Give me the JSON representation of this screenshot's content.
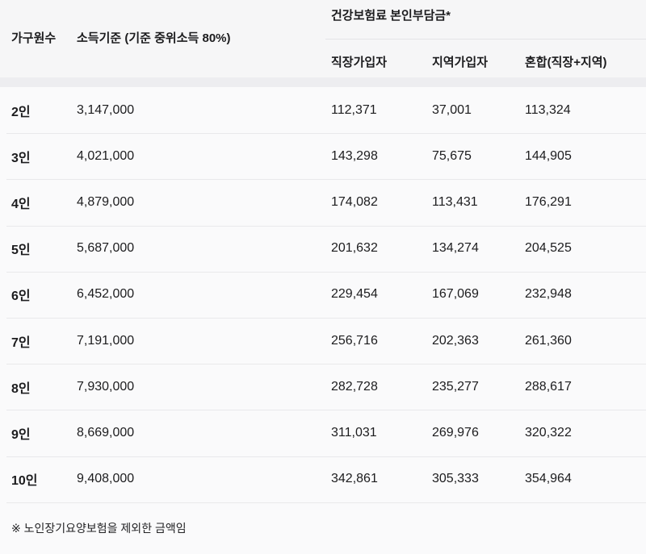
{
  "table": {
    "header": {
      "household_label": "가구원수",
      "income_label": "소득기준 (기준 중위소득 80%)",
      "group_title": "건강보험료 본인부담금*",
      "sub_columns": [
        "직장가입자",
        "지역가입자",
        "혼합(직장+지역)"
      ]
    },
    "rows": [
      {
        "household": "2인",
        "income": "3,147,000",
        "workplace": "112,371",
        "regional": "37,001",
        "mixed": "113,324"
      },
      {
        "household": "3인",
        "income": "4,021,000",
        "workplace": "143,298",
        "regional": "75,675",
        "mixed": "144,905"
      },
      {
        "household": "4인",
        "income": "4,879,000",
        "workplace": "174,082",
        "regional": "113,431",
        "mixed": "176,291"
      },
      {
        "household": "5인",
        "income": "5,687,000",
        "workplace": "201,632",
        "regional": "134,274",
        "mixed": "204,525"
      },
      {
        "household": "6인",
        "income": "6,452,000",
        "workplace": "229,454",
        "regional": "167,069",
        "mixed": "232,948"
      },
      {
        "household": "7인",
        "income": "7,191,000",
        "workplace": "256,716",
        "regional": "202,363",
        "mixed": "261,360"
      },
      {
        "household": "8인",
        "income": "7,930,000",
        "workplace": "282,728",
        "regional": "235,277",
        "mixed": "288,617"
      },
      {
        "household": "9인",
        "income": "8,669,000",
        "workplace": "311,031",
        "regional": "269,976",
        "mixed": "320,322"
      },
      {
        "household": "10인",
        "income": "9,408,000",
        "workplace": "342,861",
        "regional": "305,333",
        "mixed": "354,964"
      }
    ],
    "footnote": "※ 노인장기요양보험을 제외한 금액임"
  },
  "colors": {
    "page_background": "#f7f7f8",
    "body_background": "#fafafb",
    "divider_band": "#ededf0",
    "row_separator": "#e9e9eb",
    "text": "#1c1c1e"
  }
}
